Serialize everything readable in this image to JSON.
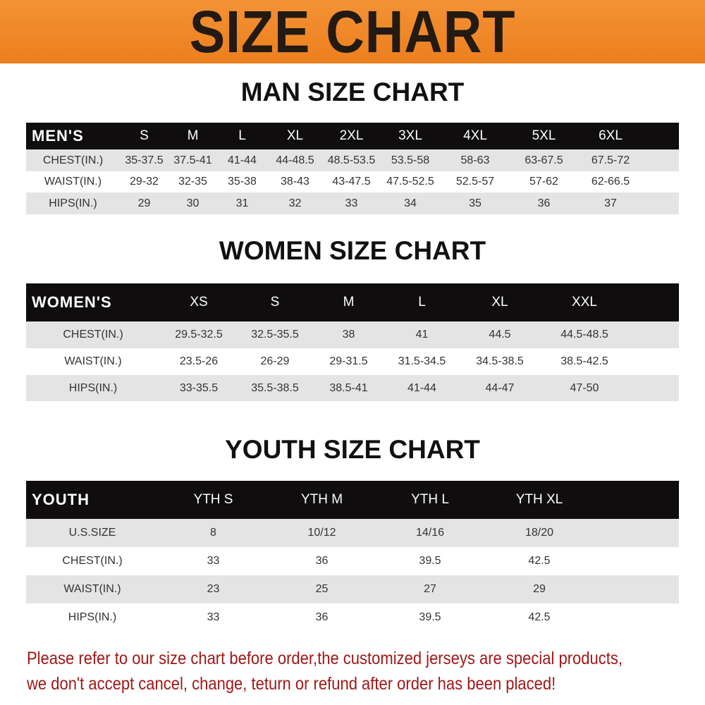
{
  "banner_title": "SIZE CHART",
  "tables": [
    {
      "title": "MAN SIZE CHART",
      "header": [
        "MEN'S",
        "S",
        "M",
        "L",
        "XL",
        "2XL",
        "3XL",
        "4XL",
        "5XL",
        "6XL"
      ],
      "rows": [
        [
          "CHEST(IN.)",
          "35-37.5",
          "37.5-41",
          "41-44",
          "44-48.5",
          "48.5-53.5",
          "53.5-58",
          "58-63",
          "63-67.5",
          "67.5-72"
        ],
        [
          "WAIST(IN.)",
          "29-32",
          "32-35",
          "35-38",
          "38-43",
          "43-47.5",
          "47.5-52.5",
          "52.5-57",
          "57-62",
          "62-66.5"
        ],
        [
          "HIPS(IN.)",
          "29",
          "30",
          "31",
          "32",
          "33",
          "34",
          "35",
          "36",
          "37"
        ]
      ]
    },
    {
      "title": "WOMEN SIZE CHART",
      "header": [
        "WOMEN'S",
        "XS",
        "S",
        "M",
        "L",
        "XL",
        "XXL"
      ],
      "rows": [
        [
          "CHEST(IN.)",
          "29.5-32.5",
          "32.5-35.5",
          "38",
          "41",
          "44.5",
          "44.5-48.5"
        ],
        [
          "WAIST(IN.)",
          "23.5-26",
          "26-29",
          "29-31.5",
          "31.5-34.5",
          "34.5-38.5",
          "38.5-42.5"
        ],
        [
          "HIPS(IN.)",
          "33-35.5",
          "35.5-38.5",
          "38.5-41",
          "41-44",
          "44-47",
          "47-50"
        ]
      ]
    },
    {
      "title": "YOUTH SIZE CHART",
      "header": [
        "YOUTH",
        "YTH S",
        "YTH M",
        "YTH L",
        "YTH XL"
      ],
      "rows": [
        [
          "U.S.SIZE",
          "8",
          "10/12",
          "14/16",
          "18/20"
        ],
        [
          "CHEST(IN.)",
          "33",
          "36",
          "39.5",
          "42.5"
        ],
        [
          "WAIST(IN.)",
          "23",
          "25",
          "27",
          "29"
        ],
        [
          "HIPS(IN.)",
          "33",
          "36",
          "39.5",
          "42.5"
        ]
      ]
    }
  ],
  "notice": [
    "Please refer to our size chart before order,the customized jerseys are special products,",
    "we don't accept cancel, change, teturn or refund after order has been placed!"
  ],
  "colors": {
    "banner": "#ef8a2a",
    "header_row": "#0f0d0d",
    "stripe": "#e4e4e4",
    "notice": "#a01818"
  }
}
